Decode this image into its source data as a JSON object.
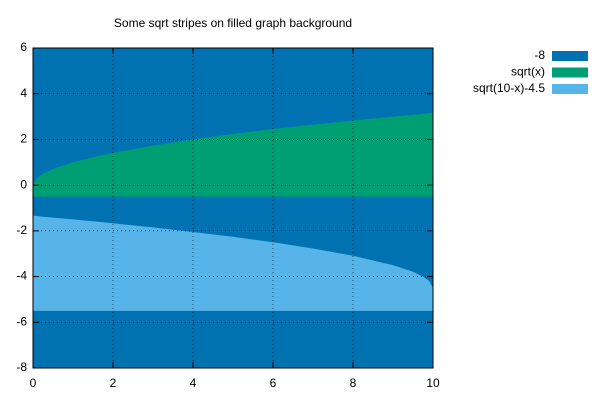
{
  "chart_data": {
    "type": "area",
    "title": "Some sqrt stripes on filled graph background",
    "x": [
      0,
      0.1,
      0.25,
      0.5,
      1,
      1.5,
      2,
      3,
      4,
      5,
      6,
      7,
      8,
      9,
      9.5,
      9.75,
      9.9,
      10
    ],
    "series": [
      {
        "name": "-8",
        "color": "#0072b2",
        "fill_to": 6,
        "values": [
          -8,
          -8,
          -8,
          -8,
          -8,
          -8,
          -8,
          -8,
          -8,
          -8,
          -8,
          -8,
          -8,
          -8,
          -8,
          -8,
          -8,
          -8
        ]
      },
      {
        "name": "sqrt(x)",
        "color": "#009e73",
        "fill_to": -0.5,
        "values": [
          0,
          0.32,
          0.5,
          0.71,
          1,
          1.22,
          1.41,
          1.73,
          2,
          2.24,
          2.45,
          2.65,
          2.83,
          3,
          3.08,
          3.12,
          3.15,
          3.16
        ]
      },
      {
        "name": "sqrt(10-x)-4.5",
        "color": "#56b4e9",
        "fill_to": -5.5,
        "values": [
          -1.34,
          -1.35,
          -1.38,
          -1.42,
          -1.5,
          -1.58,
          -1.67,
          -1.85,
          -2.05,
          -2.26,
          -2.5,
          -2.77,
          -3.09,
          -3.5,
          -3.79,
          -4,
          -4.18,
          -4.5
        ]
      }
    ],
    "xlim": [
      0,
      10
    ],
    "xticks": [
      0,
      2,
      4,
      6,
      8,
      10
    ],
    "ylim": [
      -8,
      6
    ],
    "yticks": [
      -8,
      -6,
      -4,
      -2,
      0,
      2,
      4,
      6
    ],
    "grid": true,
    "legend": "top-right"
  }
}
